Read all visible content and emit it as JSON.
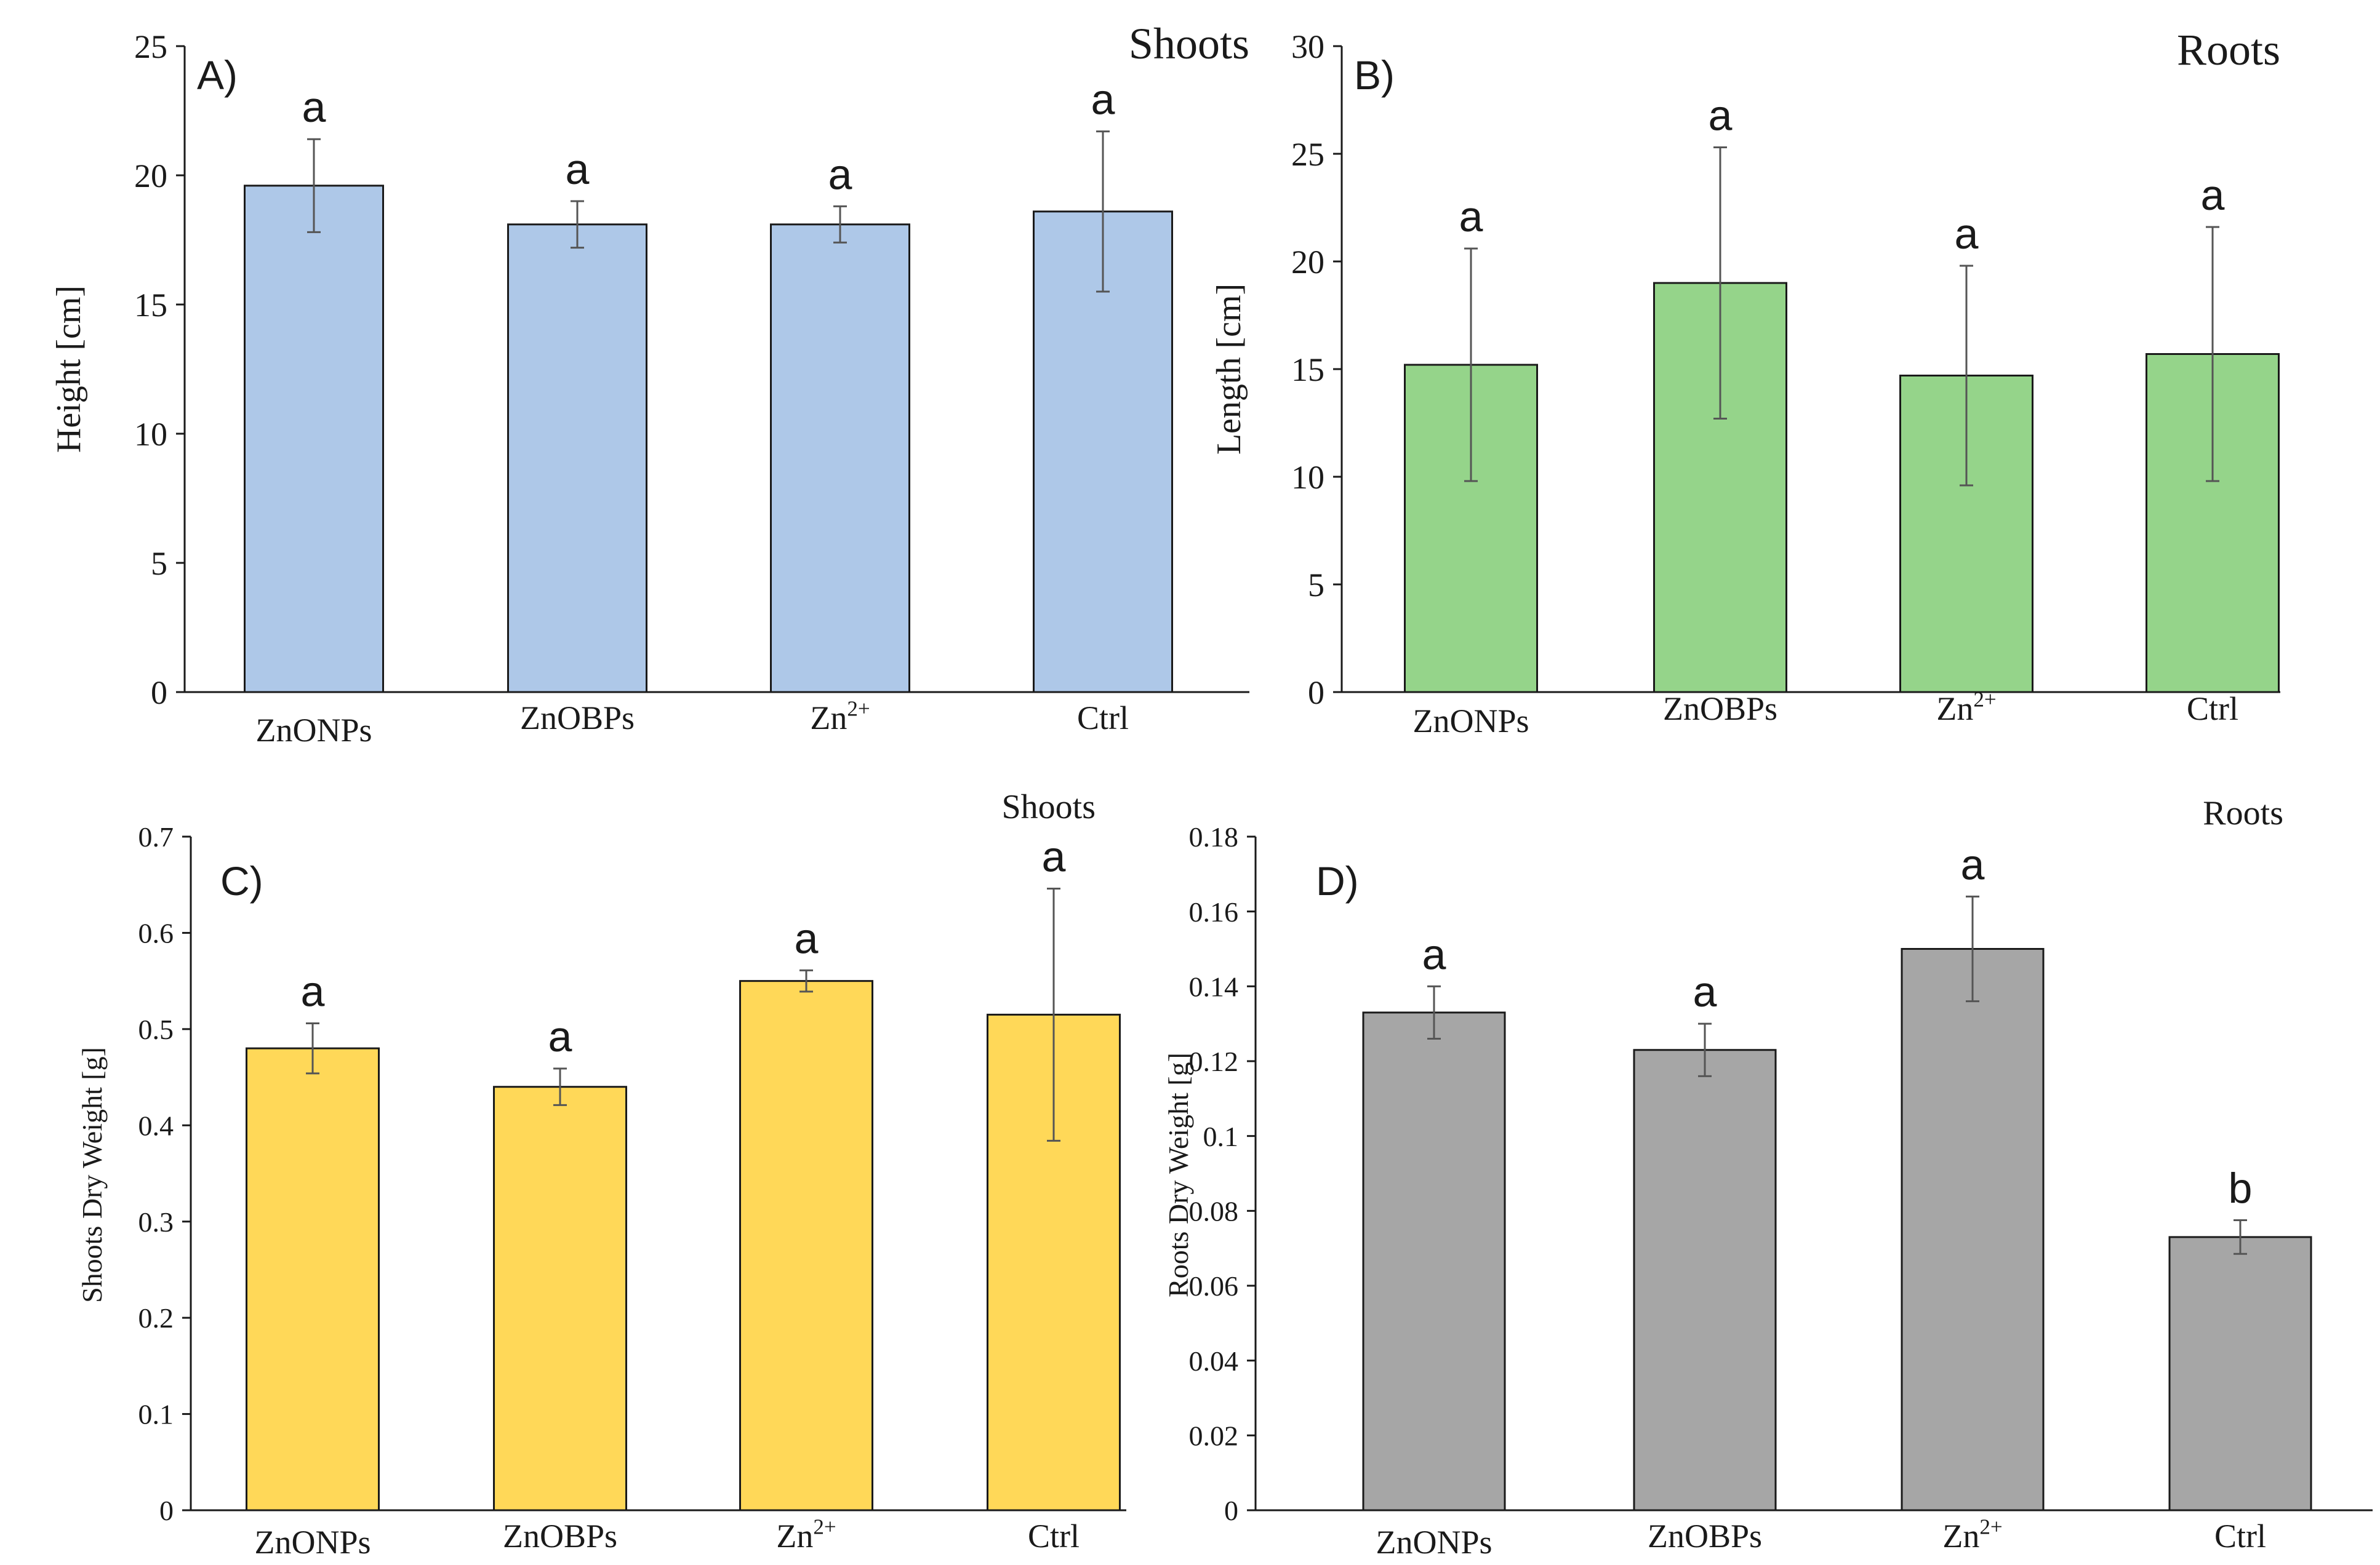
{
  "chart_data": [
    {
      "type": "bar",
      "panel_label": "A)",
      "title": "Shoots",
      "ylabel": "Height [cm]",
      "xlabel": "",
      "ylim": [
        0,
        25
      ],
      "yticks": [
        "0",
        "5",
        "10",
        "15",
        "20",
        "25"
      ],
      "categories": [
        {
          "base": "ZnONPs",
          "sup": ""
        },
        {
          "base": "ZnOBPs",
          "sup": ""
        },
        {
          "base": "Zn",
          "sup": "2+"
        },
        {
          "base": "Ctrl",
          "sup": ""
        }
      ],
      "values": [
        19.6,
        18.1,
        18.1,
        18.6
      ],
      "errors": [
        1.8,
        0.9,
        0.7,
        3.1
      ],
      "significance": [
        "a",
        "a",
        "a",
        "a"
      ],
      "bar_color": "#aec8e8"
    },
    {
      "type": "bar",
      "panel_label": "B)",
      "title": "Roots",
      "ylabel": "Length [cm]",
      "xlabel": "",
      "ylim": [
        0,
        30
      ],
      "yticks": [
        "0",
        "5",
        "10",
        "15",
        "20",
        "25",
        "30"
      ],
      "categories": [
        {
          "base": "ZnONPs",
          "sup": ""
        },
        {
          "base": "ZnOBPs",
          "sup": ""
        },
        {
          "base": "Zn",
          "sup": "2+"
        },
        {
          "base": "Ctrl",
          "sup": ""
        }
      ],
      "values": [
        15.2,
        19.0,
        14.7,
        15.7
      ],
      "errors": [
        5.4,
        6.3,
        5.1,
        5.9
      ],
      "significance": [
        "a",
        "a",
        "a",
        "a"
      ],
      "bar_color": "#95d48a"
    },
    {
      "type": "bar",
      "panel_label": "C)",
      "title": "Shoots",
      "ylabel": "Shoots Dry Weight [g]",
      "xlabel": "",
      "ylim": [
        0,
        0.7
      ],
      "yticks": [
        "0",
        "0.1",
        "0.2",
        "0.3",
        "0.4",
        "0.5",
        "0.6",
        "0.7"
      ],
      "categories": [
        {
          "base": "ZnONPs",
          "sup": ""
        },
        {
          "base": "ZnOBPs",
          "sup": ""
        },
        {
          "base": "Zn",
          "sup": "2+"
        },
        {
          "base": "Ctrl",
          "sup": ""
        }
      ],
      "values": [
        0.48,
        0.44,
        0.55,
        0.515
      ],
      "errors": [
        0.026,
        0.019,
        0.011,
        0.131
      ],
      "significance": [
        "a",
        "a",
        "a",
        "a"
      ],
      "bar_color": "#ffd858"
    },
    {
      "type": "bar",
      "panel_label": "D)",
      "title": "Roots",
      "ylabel": "Roots Dry Weight [g]",
      "xlabel": "",
      "ylim": [
        0,
        0.18
      ],
      "yticks": [
        "0",
        "0.02",
        "0.04",
        "0.06",
        "0.08",
        "0.1",
        "0.12",
        "0.14",
        "0.16",
        "0.18"
      ],
      "categories": [
        {
          "base": "ZnONPs",
          "sup": ""
        },
        {
          "base": "ZnOBPs",
          "sup": ""
        },
        {
          "base": "Zn",
          "sup": "2+"
        },
        {
          "base": "Ctrl",
          "sup": ""
        }
      ],
      "values": [
        0.133,
        0.123,
        0.15,
        0.073
      ],
      "errors": [
        0.007,
        0.007,
        0.014,
        0.0045
      ],
      "significance": [
        "a",
        "a",
        "a",
        "b"
      ],
      "bar_color": "#a6a6a6"
    }
  ]
}
